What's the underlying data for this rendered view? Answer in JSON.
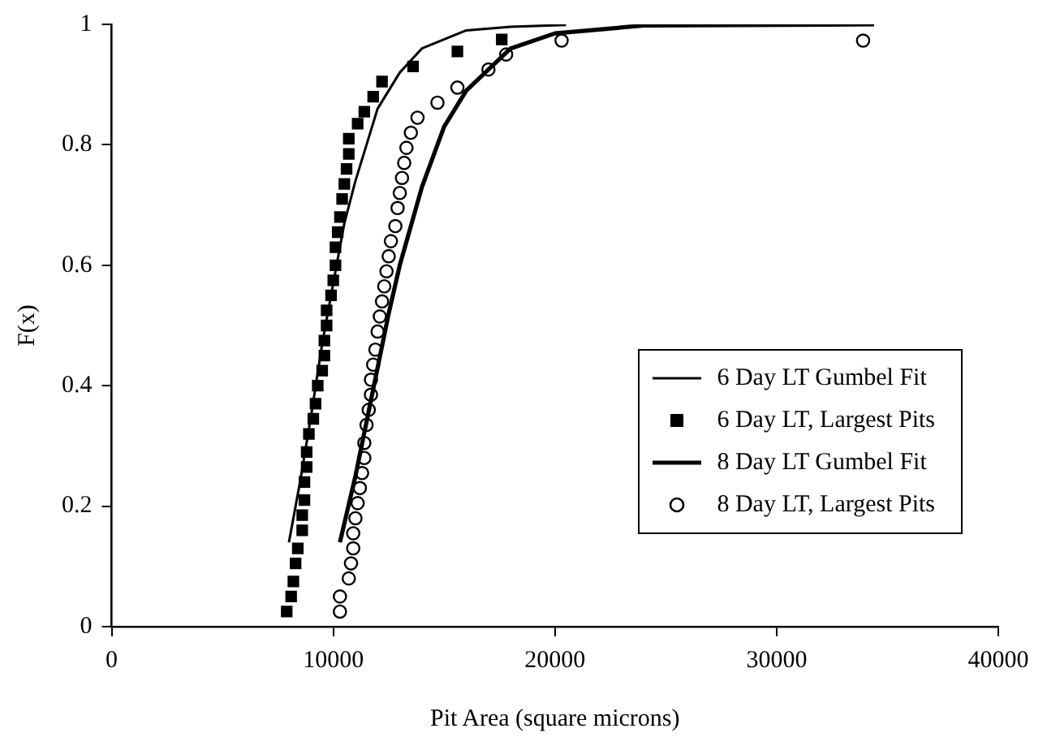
{
  "chart_data": {
    "type": "scatter",
    "xlabel": "Pit Area (square microns)",
    "ylabel": "F(x)",
    "xlim": [
      0,
      40000
    ],
    "xticks": [
      0,
      10000,
      20000,
      30000,
      40000
    ],
    "ylim": [
      0,
      1
    ],
    "yticks": [
      0,
      0.2,
      0.4,
      0.6,
      0.8,
      1
    ],
    "grid": false,
    "legend": "right",
    "series": [
      {
        "name": "6 Day LT Gumbel Fit",
        "type": "line",
        "color": "#000000",
        "marker": "none",
        "line_style": "solid",
        "x": [
          8000,
          8500,
          9000,
          9500,
          10000,
          10500,
          11000,
          12000,
          13000,
          14000,
          16000,
          18000,
          20500
        ],
        "values": [
          0.14,
          0.24,
          0.35,
          0.47,
          0.57,
          0.67,
          0.74,
          0.86,
          0.92,
          0.96,
          0.99,
          0.996,
          0.999
        ]
      },
      {
        "name": "6 Day LT, Largest Pits",
        "type": "scatter",
        "color": "#000000",
        "marker": "square",
        "x": [
          7900,
          8100,
          8200,
          8300,
          8400,
          8600,
          8600,
          8700,
          8700,
          8800,
          8800,
          8900,
          9100,
          9200,
          9300,
          9500,
          9600,
          9600,
          9700,
          9700,
          9900,
          10000,
          10100,
          10100,
          10200,
          10300,
          10400,
          10500,
          10600,
          10700,
          10700,
          11100,
          11400,
          11800,
          12200,
          13600,
          15600,
          17600
        ],
        "values": [
          0.025,
          0.05,
          0.075,
          0.105,
          0.13,
          0.16,
          0.185,
          0.21,
          0.24,
          0.265,
          0.29,
          0.32,
          0.345,
          0.37,
          0.4,
          0.425,
          0.45,
          0.475,
          0.5,
          0.525,
          0.55,
          0.575,
          0.6,
          0.63,
          0.655,
          0.68,
          0.71,
          0.735,
          0.76,
          0.785,
          0.81,
          0.835,
          0.855,
          0.88,
          0.905,
          0.93,
          0.955,
          0.975
        ]
      },
      {
        "name": "8 Day LT Gumbel Fit",
        "type": "line",
        "color": "#000000",
        "marker": "none",
        "line_style": "solid",
        "x": [
          10300,
          11000,
          11500,
          12000,
          12500,
          13000,
          14000,
          15000,
          16000,
          18000,
          20000,
          24000,
          34400
        ],
        "values": [
          0.14,
          0.25,
          0.34,
          0.43,
          0.52,
          0.6,
          0.73,
          0.83,
          0.89,
          0.96,
          0.985,
          0.998,
          1
        ]
      },
      {
        "name": "8 Day LT, Largest Pits",
        "type": "scatter",
        "color": "#000000",
        "marker": "circle",
        "x": [
          10300,
          10300,
          10700,
          10800,
          10900,
          10900,
          11000,
          11100,
          11200,
          11300,
          11400,
          11400,
          11500,
          11600,
          11700,
          11700,
          11800,
          11900,
          12000,
          12100,
          12200,
          12300,
          12400,
          12500,
          12600,
          12800,
          12900,
          13000,
          13100,
          13200,
          13300,
          13500,
          13800,
          14700,
          15600,
          17000,
          17800,
          20300,
          33900
        ],
        "values": [
          0.025,
          0.05,
          0.08,
          0.105,
          0.13,
          0.155,
          0.18,
          0.205,
          0.23,
          0.255,
          0.28,
          0.305,
          0.335,
          0.36,
          0.385,
          0.41,
          0.435,
          0.46,
          0.49,
          0.515,
          0.54,
          0.565,
          0.59,
          0.615,
          0.64,
          0.665,
          0.695,
          0.72,
          0.745,
          0.77,
          0.795,
          0.82,
          0.845,
          0.87,
          0.895,
          0.925,
          0.95,
          0.973,
          0.973
        ]
      }
    ]
  }
}
